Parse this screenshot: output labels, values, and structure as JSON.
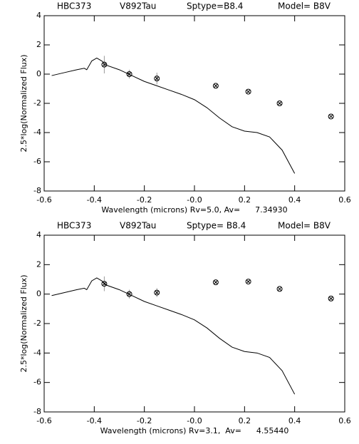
{
  "chart_data": [
    {
      "type": "scatter",
      "title": [
        "HBC373",
        "V892Tau",
        "Sptype=B8.4",
        "Model= B8V"
      ],
      "x_label": "Wavelength (microns) Rv=5.0, Av=      7.34930",
      "y_label": "2.5*log(Normalized Flux)",
      "xlim": [
        -0.6,
        0.6
      ],
      "ylim": [
        -8,
        4
      ],
      "xticks": [
        -0.6,
        -0.4,
        -0.2,
        {
          "value": 0,
          "label": "-0.0"
        },
        0.2,
        0.4,
        0.6
      ],
      "yticks": [
        -8,
        -6,
        -4,
        -2,
        0,
        2,
        4
      ],
      "series": [
        {
          "style": "line",
          "color": "#000000",
          "x": [
            -0.57,
            -0.52,
            -0.47,
            -0.44,
            -0.43,
            -0.41,
            -0.39,
            -0.37,
            -0.35,
            -0.3,
            -0.25,
            -0.2,
            -0.15,
            -0.1,
            -0.05,
            0,
            0.05,
            0.1,
            0.15,
            0.2,
            0.25,
            0.3,
            0.35,
            0.4
          ],
          "values": [
            -0.1,
            0.1,
            0.3,
            0.4,
            0.3,
            0.9,
            1.1,
            0.9,
            0.6,
            0.3,
            -0.1,
            -0.5,
            -0.8,
            -1.1,
            -1.4,
            -1.75,
            -2.3,
            -3.0,
            -3.6,
            -3.9,
            -4.0,
            -4.3,
            -5.2,
            -6.8
          ]
        },
        {
          "style": "marker",
          "color": "#000000",
          "x": [
            -0.36,
            -0.26,
            -0.15,
            0.085,
            0.215,
            0.34,
            0.545
          ],
          "values": [
            0.65,
            0.0,
            -0.3,
            -0.8,
            -1.2,
            -2.0,
            -2.9
          ],
          "errors": [
            0.6,
            0.3,
            0.4,
            null,
            null,
            null,
            null
          ]
        }
      ]
    },
    {
      "type": "scatter",
      "title": [
        "HBC373",
        "V892Tau",
        "Sptype= B8.4",
        "Model= B8V"
      ],
      "x_label": "Wavelength (microns) Rv=3.1,  Av=      4.55440",
      "y_label": "2.5*log(Normalized Flux)",
      "xlim": [
        -0.6,
        0.6
      ],
      "ylim": [
        -8,
        4
      ],
      "xticks": [
        -0.6,
        -0.4,
        -0.2,
        {
          "value": 0,
          "label": "-0.0"
        },
        0.2,
        0.4,
        0.6
      ],
      "yticks": [
        -8,
        -6,
        -4,
        -2,
        0,
        2,
        4
      ],
      "series": [
        {
          "style": "line",
          "color": "#000000",
          "x": [
            -0.57,
            -0.52,
            -0.47,
            -0.44,
            -0.43,
            -0.41,
            -0.39,
            -0.37,
            -0.35,
            -0.3,
            -0.25,
            -0.2,
            -0.15,
            -0.1,
            -0.05,
            0,
            0.05,
            0.1,
            0.15,
            0.2,
            0.25,
            0.3,
            0.35,
            0.4
          ],
          "values": [
            -0.1,
            0.1,
            0.3,
            0.4,
            0.3,
            0.9,
            1.1,
            0.9,
            0.6,
            0.3,
            -0.1,
            -0.5,
            -0.8,
            -1.1,
            -1.4,
            -1.75,
            -2.3,
            -3.0,
            -3.6,
            -3.9,
            -4.0,
            -4.3,
            -5.2,
            -6.8
          ]
        },
        {
          "style": "marker",
          "color": "#000000",
          "x": [
            -0.36,
            -0.26,
            -0.15,
            0.085,
            0.215,
            0.34,
            0.545
          ],
          "values": [
            0.7,
            0.0,
            0.1,
            0.8,
            0.85,
            0.35,
            -0.3
          ],
          "errors": [
            0.5,
            0.3,
            0.3,
            null,
            null,
            null,
            null
          ]
        }
      ]
    }
  ]
}
